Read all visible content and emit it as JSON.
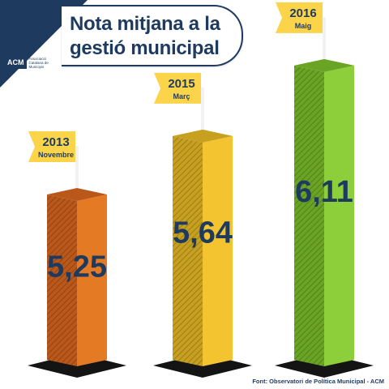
{
  "title": {
    "line1": "Nota mitjana a la",
    "line2": "gestió municipal"
  },
  "logo": {
    "abbr": "ACM",
    "text": "Associació Catalana de Municipis"
  },
  "source": "Font: Observatori de Política Municipal - ACM",
  "chart_data": {
    "type": "bar",
    "title": "Nota mitjana a la gestió municipal",
    "categories": [
      "2013",
      "2015",
      "2016"
    ],
    "category_sublabels": [
      "Novembre",
      "Març",
      "Maig"
    ],
    "values": [
      5.25,
      5.64,
      6.11
    ],
    "value_labels": [
      "5,25",
      "5,64",
      "6,11"
    ],
    "colors": [
      "#e57a25",
      "#f3c430",
      "#8ccf3a"
    ],
    "dark_colors": [
      "#b9581a",
      "#c7a020",
      "#6aa424"
    ],
    "label_color": "#1e3a5f",
    "flag_color": "#fbd44a",
    "xlabel": "",
    "ylabel": "",
    "grid": false
  }
}
